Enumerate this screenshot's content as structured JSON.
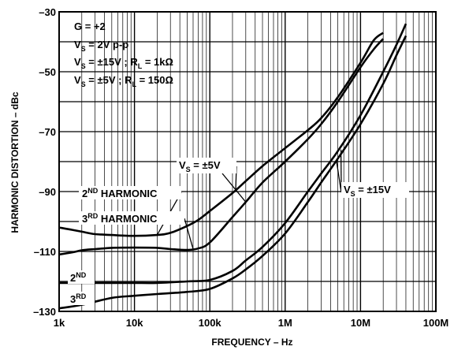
{
  "chart_data": {
    "type": "line",
    "title": "",
    "xlabel": "FREQUENCY – Hz",
    "ylabel": "HARMONIC DISTORTION – dBc",
    "x_scale": "log",
    "xlim": [
      1000,
      100000000
    ],
    "ylim": [
      -130,
      -30
    ],
    "grid": true,
    "x_ticks": [
      {
        "value": 1000,
        "label": "1k"
      },
      {
        "value": 10000,
        "label": "10k"
      },
      {
        "value": 100000,
        "label": "100k"
      },
      {
        "value": 1000000,
        "label": "1M"
      },
      {
        "value": 10000000,
        "label": "10M"
      },
      {
        "value": 100000000,
        "label": "100M"
      }
    ],
    "y_ticks": [
      {
        "value": -30,
        "label": "–30"
      },
      {
        "value": -50,
        "label": "–50"
      },
      {
        "value": -70,
        "label": "–70"
      },
      {
        "value": -90,
        "label": "–90"
      },
      {
        "value": -110,
        "label": "–110"
      },
      {
        "value": -130,
        "label": "–130"
      }
    ],
    "conditions": {
      "gain": {
        "main": "G = +2",
        "sub": "",
        "rest": ""
      },
      "vs_swing": {
        "main": "V",
        "sub": "S",
        "rest": " = 2V p-p"
      },
      "vs_15": {
        "main": "V",
        "sub": "S",
        "rest": " = ±15V ; R",
        "sub2": "L",
        "rest2": " = 1kΩ"
      },
      "vs_5": {
        "main": "V",
        "sub": "S",
        "rest": " = ±5V ; R",
        "sub2": "L",
        "rest2": " = 150Ω"
      }
    },
    "labels": {
      "h2": {
        "pre": "2",
        "sup": "ND",
        "post": " HARMONIC"
      },
      "h3": {
        "pre": "3",
        "sup": "RD",
        "post": " HARMONIC"
      },
      "h2_short": {
        "pre": "2",
        "sup": "ND"
      },
      "h3_short": {
        "pre": "3",
        "sup": "RD"
      },
      "vs5": {
        "main": "V",
        "sub": "S",
        "rest": " = ±5V"
      },
      "vs15": {
        "main": "V",
        "sub": "S",
        "rest": " = ±15V"
      }
    },
    "series": [
      {
        "harmonic": "2nd",
        "supply": "±5V",
        "x": [
          1000,
          1500,
          2000,
          3000,
          5000,
          10000,
          20000,
          30000,
          50000,
          70000,
          100000,
          200000,
          300000,
          500000,
          1000000,
          2000000,
          3000000,
          5000000,
          10000000,
          15000000,
          20000000
        ],
        "y": [
          -102,
          -102.8,
          -103.4,
          -104.2,
          -104.5,
          -104.8,
          -104.5,
          -103.8,
          -101.5,
          -99.5,
          -96.5,
          -90.5,
          -86.5,
          -81.5,
          -75.5,
          -69.5,
          -65.5,
          -58.5,
          -47,
          -39.5,
          -37
        ]
      },
      {
        "harmonic": "3rd",
        "supply": "±5V",
        "x": [
          1000,
          1500,
          2000,
          3000,
          5000,
          10000,
          20000,
          30000,
          50000,
          70000,
          100000,
          200000,
          300000,
          500000,
          1000000,
          2000000,
          3000000,
          5000000,
          10000000,
          15000000,
          20000000
        ],
        "y": [
          -111,
          -110.3,
          -109.6,
          -109.2,
          -108.8,
          -108.7,
          -108.8,
          -109.2,
          -109.5,
          -109,
          -107,
          -98.5,
          -93.5,
          -87,
          -80,
          -72.5,
          -67.5,
          -60,
          -48.5,
          -42.5,
          -39
        ]
      },
      {
        "harmonic": "2nd",
        "supply": "±15V",
        "x": [
          1000,
          2000,
          5000,
          10000,
          20000,
          50000,
          100000,
          200000,
          300000,
          500000,
          1000000,
          2000000,
          3000000,
          5000000,
          10000000,
          20000000,
          30000000,
          40000000
        ],
        "y": [
          -120.5,
          -120.5,
          -120.5,
          -120.5,
          -120.5,
          -120,
          -119.5,
          -116.5,
          -113,
          -108.5,
          -100.5,
          -90,
          -84,
          -76.5,
          -64.5,
          -50,
          -41,
          -34
        ]
      },
      {
        "harmonic": "3rd",
        "supply": "±15V",
        "x": [
          1000,
          2000,
          5000,
          10000,
          20000,
          50000,
          100000,
          200000,
          300000,
          500000,
          1000000,
          2000000,
          3000000,
          5000000,
          10000000,
          20000000,
          30000000,
          40000000
        ],
        "y": [
          -129,
          -127.8,
          -125.5,
          -124.8,
          -124.2,
          -123.5,
          -122.5,
          -119,
          -116,
          -111.5,
          -104,
          -93.5,
          -87,
          -79,
          -67.5,
          -54,
          -44.5,
          -38
        ]
      }
    ]
  }
}
